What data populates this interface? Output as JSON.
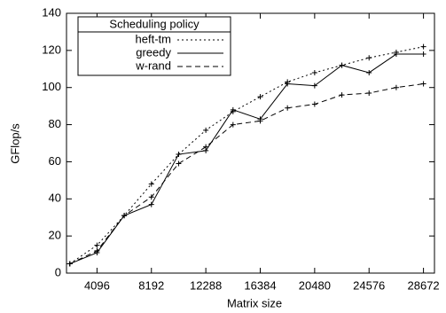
{
  "chart_data": {
    "type": "line",
    "x_label": "Matrix size",
    "y_label": "GFlop/s",
    "legend_title": "Scheduling policy",
    "legend": "upper left",
    "x": [
      2048,
      4096,
      6144,
      8192,
      10240,
      12288,
      14336,
      16384,
      18432,
      20480,
      22528,
      24576,
      26624,
      28672
    ],
    "series": [
      {
        "name": "heft-tm",
        "color": "#000000",
        "dash": "2,3",
        "values": [
          5,
          15,
          31,
          48,
          64,
          77,
          87,
          95,
          103,
          108,
          112,
          116,
          119,
          122
        ]
      },
      {
        "name": "greedy",
        "color": "#000000",
        "dash": "none",
        "values": [
          5,
          11,
          31,
          37,
          64,
          66,
          88,
          83,
          102,
          101,
          112,
          108,
          118,
          118
        ]
      },
      {
        "name": "w-rand",
        "color": "#000000",
        "dash": "6,4",
        "values": [
          5,
          12,
          31,
          41,
          59,
          68,
          80,
          82,
          89,
          91,
          96,
          97,
          100,
          102
        ]
      }
    ],
    "xlim": [
      1800,
      29500
    ],
    "xticks": [
      4096,
      8192,
      12288,
      16384,
      20480,
      24576,
      28672
    ],
    "ylim": [
      0,
      140
    ],
    "yticks": [
      0,
      20,
      40,
      60,
      80,
      100,
      120,
      140
    ]
  }
}
